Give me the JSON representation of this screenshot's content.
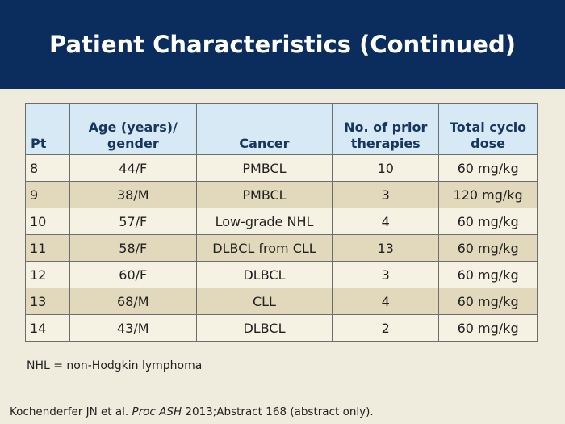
{
  "slide": {
    "title": "Patient Characteristics (Continued)"
  },
  "table": {
    "headers": [
      "Pt",
      "Age (years)/\ngender",
      "Cancer",
      "No. of prior\ntherapies",
      "Total cyclo\ndose"
    ],
    "rows": [
      [
        "8",
        "44/F",
        "PMBCL",
        "10",
        "60 mg/kg"
      ],
      [
        "9",
        "38/M",
        "PMBCL",
        "3",
        "120 mg/kg"
      ],
      [
        "10",
        "57/F",
        "Low-grade NHL",
        "4",
        "60 mg/kg"
      ],
      [
        "11",
        "58/F",
        "DLBCL from CLL",
        "13",
        "60 mg/kg"
      ],
      [
        "12",
        "60/F",
        "DLBCL",
        "3",
        "60 mg/kg"
      ],
      [
        "13",
        "68/M",
        "CLL",
        "4",
        "60 mg/kg"
      ],
      [
        "14",
        "43/M",
        "DLBCL",
        "2",
        "60 mg/kg"
      ]
    ]
  },
  "footnote": "NHL = non-Hodgkin lymphoma",
  "citation": {
    "authors": "Kochenderfer JN et al. ",
    "journal": "Proc ASH",
    "rest": " 2013;Abstract 168 (abstract only)."
  },
  "colors": {
    "title_bar": "#0b2d5e",
    "header_row": "#d6e9f4",
    "row_light": "#f5f1e3",
    "row_dark": "#e2d9bd",
    "background": "#efebdd"
  }
}
